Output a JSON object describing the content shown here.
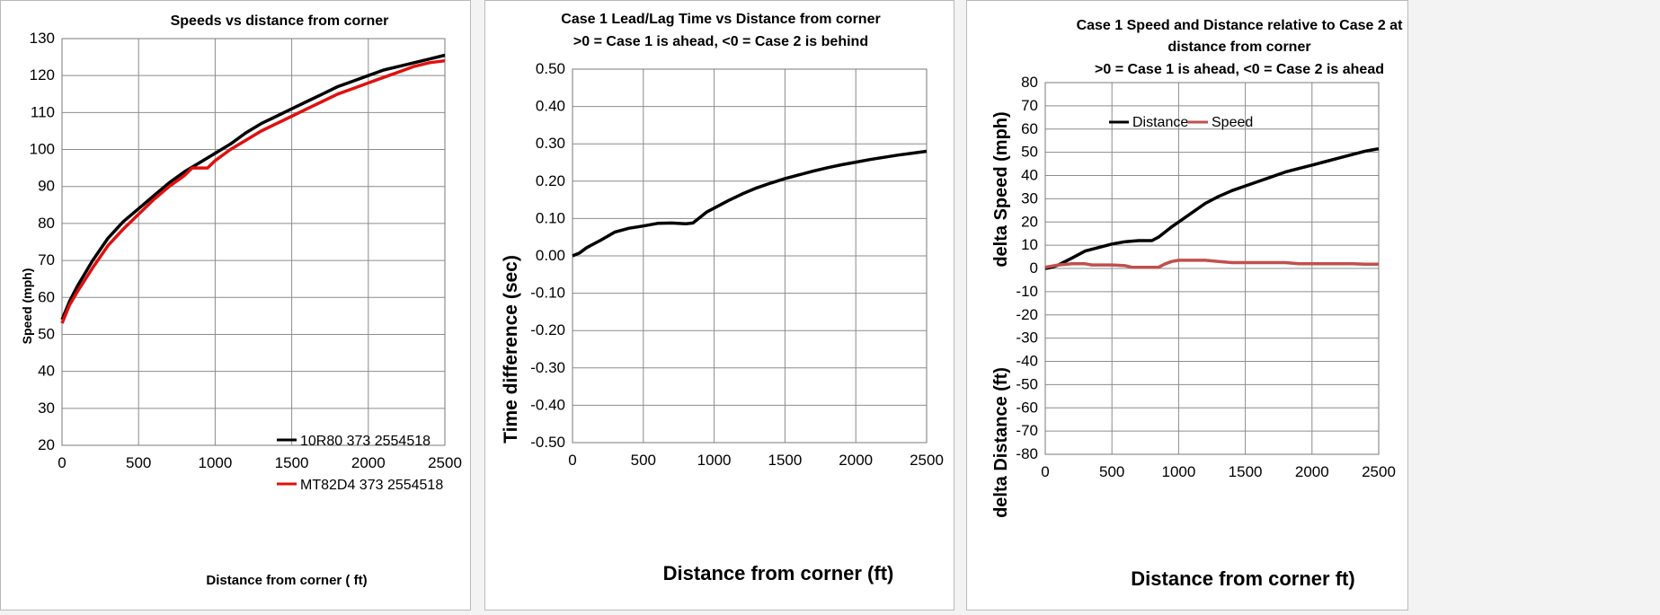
{
  "chart_data": [
    {
      "type": "line",
      "title_lines": [
        "Speeds vs distance  from corner"
      ],
      "xlabel": "Distance from corner ( ft)",
      "ylabel": "Speed  (mph)",
      "xlim": [
        0,
        2500
      ],
      "ylim": [
        20,
        130
      ],
      "x_ticks": [
        0,
        500,
        1000,
        1500,
        2000,
        2500
      ],
      "y_ticks": [
        20,
        30,
        40,
        50,
        60,
        70,
        80,
        90,
        100,
        110,
        120,
        130
      ],
      "grid": true,
      "legend_position": "bottom-right",
      "colors": {
        "10R80 373 2554518": "#000000",
        "MT82D4 373 2554518": "#e01010"
      },
      "series": [
        {
          "name": "10R80 373 2554518",
          "x": [
            0,
            50,
            100,
            200,
            300,
            400,
            500,
            600,
            700,
            800,
            900,
            1000,
            1100,
            1200,
            1300,
            1400,
            1500,
            1600,
            1700,
            1800,
            1900,
            2000,
            2100,
            2200,
            2300,
            2400,
            2500
          ],
          "y": [
            54,
            59,
            63,
            70,
            76,
            80.5,
            84,
            87.5,
            91,
            94,
            96.5,
            99,
            101.5,
            104.5,
            107,
            109,
            111,
            113,
            115,
            117,
            118.5,
            120,
            121.5,
            122.5,
            123.5,
            124.5,
            125.5
          ]
        },
        {
          "name": "MT82D4 373 2554518",
          "x": [
            0,
            50,
            100,
            200,
            300,
            400,
            500,
            600,
            700,
            800,
            850,
            950,
            1000,
            1100,
            1200,
            1300,
            1400,
            1500,
            1600,
            1700,
            1800,
            1900,
            2000,
            2100,
            2200,
            2300,
            2400,
            2500
          ],
          "y": [
            53,
            58,
            61.5,
            68,
            74,
            78.5,
            82.5,
            86.5,
            90,
            93,
            95,
            95,
            97,
            100,
            102.5,
            105,
            107,
            109,
            111,
            113,
            115,
            116.5,
            118,
            119.5,
            121,
            122.5,
            123.5,
            124
          ]
        }
      ]
    },
    {
      "type": "line",
      "title_lines": [
        "Case 1 Lead/Lag Time vs Distance  from corner",
        ">0 = Case  1 is ahead,  <0 = Case 2 is behind"
      ],
      "xlabel": "Distance from corner  (ft)",
      "ylabel": "Time difference  (sec)",
      "xlim": [
        0,
        2500
      ],
      "ylim": [
        -0.5,
        0.5
      ],
      "x_ticks": [
        0,
        500,
        1000,
        1500,
        2000,
        2500
      ],
      "y_ticks": [
        -0.5,
        -0.4,
        -0.3,
        -0.2,
        -0.1,
        0.0,
        0.1,
        0.2,
        0.3,
        0.4,
        0.5
      ],
      "y_tick_labels": [
        "-0.50",
        "-0.40",
        "-0.30",
        "-0.20",
        "-0.10",
        "0.00",
        "0.10",
        "0.20",
        "0.30",
        "0.40",
        "0.50"
      ],
      "grid": true,
      "colors": {
        "series": "#000000"
      },
      "series": [
        {
          "x": [
            0,
            50,
            100,
            200,
            300,
            400,
            500,
            600,
            700,
            800,
            850,
            950,
            1000,
            1100,
            1200,
            1300,
            1400,
            1500,
            1600,
            1700,
            1800,
            1900,
            2000,
            2100,
            2200,
            2300,
            2400,
            2500
          ],
          "y": [
            0.0,
            0.008,
            0.022,
            0.042,
            0.064,
            0.074,
            0.08,
            0.087,
            0.088,
            0.086,
            0.088,
            0.118,
            0.128,
            0.148,
            0.166,
            0.182,
            0.195,
            0.207,
            0.217,
            0.227,
            0.236,
            0.244,
            0.251,
            0.258,
            0.264,
            0.27,
            0.275,
            0.28
          ]
        }
      ]
    },
    {
      "type": "line",
      "title_lines": [
        "Case 1 Speed and Distance  relative to Case 2 at",
        "distance from corner",
        ">0 = Case  1 is ahead,  <0 = Case 2 is ahead"
      ],
      "xlabel": "Distance from corner  ft)",
      "ylabel_upper": "delta Speed  (mph)",
      "ylabel_lower": "delta Distance  (ft)",
      "xlim": [
        0,
        2500
      ],
      "ylim": [
        -80,
        80
      ],
      "x_ticks": [
        0,
        500,
        1000,
        1500,
        2000,
        2500
      ],
      "y_ticks": [
        -80,
        -70,
        -60,
        -50,
        -40,
        -30,
        -20,
        -10,
        0,
        10,
        20,
        30,
        40,
        50,
        60,
        70,
        80
      ],
      "grid": true,
      "legend_position": "top-left",
      "colors": {
        "Distance": "#000000",
        "Speed": "#c0504d"
      },
      "series": [
        {
          "name": "Distance",
          "x": [
            0,
            50,
            100,
            200,
            300,
            400,
            500,
            600,
            700,
            800,
            850,
            950,
            1000,
            1100,
            1200,
            1300,
            1400,
            1500,
            1600,
            1700,
            1800,
            1900,
            2000,
            2100,
            2200,
            2300,
            2400,
            2500
          ],
          "y": [
            0,
            0.5,
            1.5,
            4.5,
            7.5,
            9,
            10.5,
            11.5,
            12,
            12,
            13.5,
            18,
            20,
            24,
            28,
            31,
            33.5,
            35.5,
            37.5,
            39.5,
            41.5,
            43,
            44.5,
            46,
            47.5,
            49,
            50.5,
            51.5
          ]
        },
        {
          "name": "Speed",
          "x": [
            0,
            100,
            200,
            300,
            350,
            400,
            500,
            600,
            650,
            700,
            800,
            850,
            900,
            950,
            1000,
            1100,
            1200,
            1300,
            1400,
            1500,
            1600,
            1700,
            1800,
            1900,
            2000,
            2100,
            2200,
            2300,
            2400,
            2500
          ],
          "y": [
            0.5,
            1.5,
            2,
            2,
            1.5,
            1.5,
            1.5,
            1.2,
            0.5,
            0.5,
            0.5,
            0.5,
            2,
            3,
            3.5,
            3.5,
            3.5,
            3,
            2.5,
            2.5,
            2.5,
            2.5,
            2.5,
            2,
            2,
            2,
            2,
            2,
            1.8,
            1.8
          ]
        }
      ]
    }
  ]
}
